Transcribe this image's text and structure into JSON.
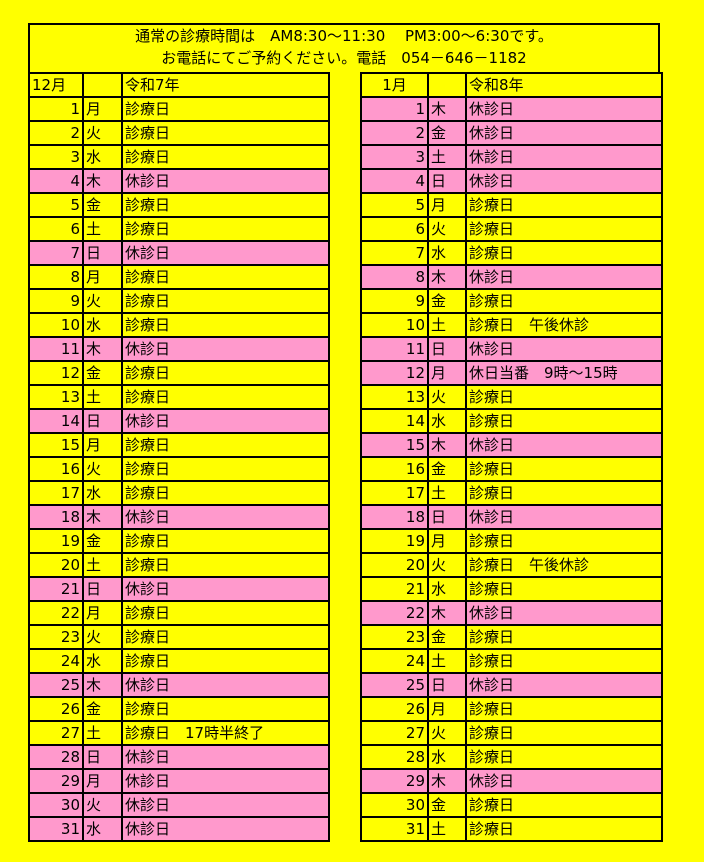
{
  "colors": {
    "open": "#ffff00",
    "closed": "#ff99cc"
  },
  "header": {
    "line1": "通常の診療時間は　AM8:30～11:30　 PM3:00～6:30です。",
    "line2": "お電話にてご予約ください。電話　054－646－1182"
  },
  "december": {
    "month": "12月",
    "era": "令和7年",
    "rows": [
      {
        "d": "1",
        "w": "月",
        "t": "診療日",
        "closed": false
      },
      {
        "d": "2",
        "w": "火",
        "t": "診療日",
        "closed": false
      },
      {
        "d": "3",
        "w": "水",
        "t": "診療日",
        "closed": false
      },
      {
        "d": "4",
        "w": "木",
        "t": "休診日",
        "closed": true
      },
      {
        "d": "5",
        "w": "金",
        "t": "診療日",
        "closed": false
      },
      {
        "d": "6",
        "w": "土",
        "t": "診療日",
        "closed": false
      },
      {
        "d": "7",
        "w": "日",
        "t": "休診日",
        "closed": true
      },
      {
        "d": "8",
        "w": "月",
        "t": "診療日",
        "closed": false
      },
      {
        "d": "9",
        "w": "火",
        "t": "診療日",
        "closed": false
      },
      {
        "d": "10",
        "w": "水",
        "t": "診療日",
        "closed": false
      },
      {
        "d": "11",
        "w": "木",
        "t": "休診日",
        "closed": true
      },
      {
        "d": "12",
        "w": "金",
        "t": "診療日",
        "closed": false
      },
      {
        "d": "13",
        "w": "土",
        "t": "診療日",
        "closed": false
      },
      {
        "d": "14",
        "w": "日",
        "t": "休診日",
        "closed": true
      },
      {
        "d": "15",
        "w": "月",
        "t": "診療日",
        "closed": false
      },
      {
        "d": "16",
        "w": "火",
        "t": "診療日",
        "closed": false
      },
      {
        "d": "17",
        "w": "水",
        "t": "診療日",
        "closed": false
      },
      {
        "d": "18",
        "w": "木",
        "t": "休診日",
        "closed": true
      },
      {
        "d": "19",
        "w": "金",
        "t": "診療日",
        "closed": false
      },
      {
        "d": "20",
        "w": "土",
        "t": "診療日",
        "closed": false
      },
      {
        "d": "21",
        "w": "日",
        "t": "休診日",
        "closed": true
      },
      {
        "d": "22",
        "w": "月",
        "t": "診療日",
        "closed": false
      },
      {
        "d": "23",
        "w": "火",
        "t": "診療日",
        "closed": false
      },
      {
        "d": "24",
        "w": "水",
        "t": "診療日",
        "closed": false
      },
      {
        "d": "25",
        "w": "木",
        "t": "休診日",
        "closed": true
      },
      {
        "d": "26",
        "w": "金",
        "t": "診療日",
        "closed": false
      },
      {
        "d": "27",
        "w": "土",
        "t": "診療日　17時半終了",
        "closed": false
      },
      {
        "d": "28",
        "w": "日",
        "t": "休診日",
        "closed": true
      },
      {
        "d": "29",
        "w": "月",
        "t": "休診日",
        "closed": true
      },
      {
        "d": "30",
        "w": "火",
        "t": "休診日",
        "closed": true
      },
      {
        "d": "31",
        "w": "水",
        "t": "休診日",
        "closed": true
      }
    ]
  },
  "january": {
    "month": "1月",
    "era": "令和8年",
    "rows": [
      {
        "d": "1",
        "w": "木",
        "t": "休診日",
        "closed": true
      },
      {
        "d": "2",
        "w": "金",
        "t": "休診日",
        "closed": true
      },
      {
        "d": "3",
        "w": "土",
        "t": "休診日",
        "closed": true
      },
      {
        "d": "4",
        "w": "日",
        "t": "休診日",
        "closed": true
      },
      {
        "d": "5",
        "w": "月",
        "t": "診療日",
        "closed": false
      },
      {
        "d": "6",
        "w": "火",
        "t": "診療日",
        "closed": false
      },
      {
        "d": "7",
        "w": "水",
        "t": "診療日",
        "closed": false
      },
      {
        "d": "8",
        "w": "木",
        "t": "休診日",
        "closed": true
      },
      {
        "d": "9",
        "w": "金",
        "t": "診療日",
        "closed": false
      },
      {
        "d": "10",
        "w": "土",
        "t": "診療日　午後休診",
        "closed": false
      },
      {
        "d": "11",
        "w": "日",
        "t": "休診日",
        "closed": true
      },
      {
        "d": "12",
        "w": "月",
        "t": "休日当番　9時～15時",
        "closed": true
      },
      {
        "d": "13",
        "w": "火",
        "t": "診療日",
        "closed": false
      },
      {
        "d": "14",
        "w": "水",
        "t": "診療日",
        "closed": false
      },
      {
        "d": "15",
        "w": "木",
        "t": "休診日",
        "closed": true
      },
      {
        "d": "16",
        "w": "金",
        "t": "診療日",
        "closed": false
      },
      {
        "d": "17",
        "w": "土",
        "t": "診療日",
        "closed": false
      },
      {
        "d": "18",
        "w": "日",
        "t": "休診日",
        "closed": true
      },
      {
        "d": "19",
        "w": "月",
        "t": "診療日",
        "closed": false
      },
      {
        "d": "20",
        "w": "火",
        "t": "診療日　午後休診",
        "closed": false
      },
      {
        "d": "21",
        "w": "水",
        "t": "診療日",
        "closed": false
      },
      {
        "d": "22",
        "w": "木",
        "t": "休診日",
        "closed": true
      },
      {
        "d": "23",
        "w": "金",
        "t": "診療日",
        "closed": false
      },
      {
        "d": "24",
        "w": "土",
        "t": "診療日",
        "closed": false
      },
      {
        "d": "25",
        "w": "日",
        "t": "休診日",
        "closed": true
      },
      {
        "d": "26",
        "w": "月",
        "t": "診療日",
        "closed": false
      },
      {
        "d": "27",
        "w": "火",
        "t": "診療日",
        "closed": false
      },
      {
        "d": "28",
        "w": "水",
        "t": "診療日",
        "closed": false
      },
      {
        "d": "29",
        "w": "木",
        "t": "休診日",
        "closed": true
      },
      {
        "d": "30",
        "w": "金",
        "t": "診療日",
        "closed": false
      },
      {
        "d": "31",
        "w": "土",
        "t": "診療日",
        "closed": false
      }
    ]
  }
}
